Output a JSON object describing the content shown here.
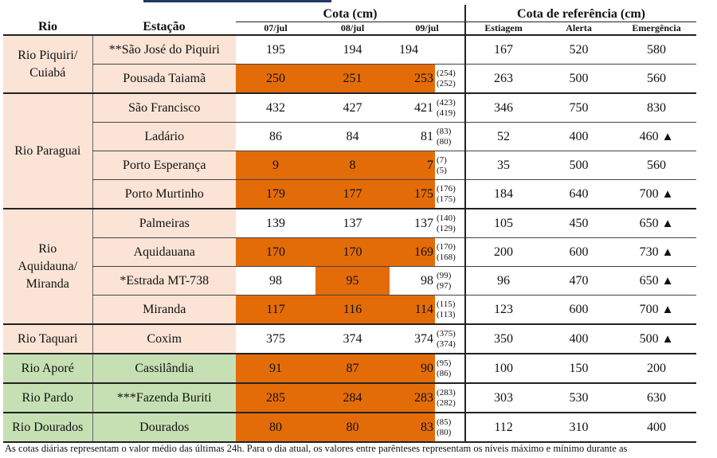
{
  "headers": {
    "rio": "Rio",
    "estacao": "Estação",
    "cota": "Cota (cm)",
    "referencia": "Cota de referência (cm)",
    "dates": [
      "07/jul",
      "08/jul",
      "09/jul"
    ],
    "ref_cols": [
      "Estiagem",
      "Alerta",
      "Emergência"
    ]
  },
  "groups": [
    {
      "rio": "Rio Piquiri/ Cuiabá"
    },
    {
      "rio": "Rio Paraguai"
    },
    {
      "rio": "Rio Aquidauna/ Miranda"
    },
    {
      "rio": "Rio Taquari"
    },
    {
      "rio": "Rio Aporé"
    },
    {
      "rio": "Rio Pardo"
    },
    {
      "rio": "Rio Dourados"
    }
  ],
  "rows": [
    {
      "estacao": "**São José do Piquiri",
      "d1": "195",
      "d2": "194",
      "d3": "194",
      "max": "",
      "min": "",
      "estiagem": "167",
      "alerta": "520",
      "emergencia": "580",
      "tri": ""
    },
    {
      "estacao": "Pousada Taiamã",
      "d1": "250",
      "d2": "251",
      "d3": "253",
      "max": "(254)",
      "min": "(252)",
      "estiagem": "263",
      "alerta": "500",
      "emergencia": "560",
      "tri": ""
    },
    {
      "estacao": "São Francisco",
      "d1": "432",
      "d2": "427",
      "d3": "421",
      "max": "(423)",
      "min": "(419)",
      "estiagem": "346",
      "alerta": "750",
      "emergencia": "830",
      "tri": ""
    },
    {
      "estacao": "Ladário",
      "d1": "86",
      "d2": "84",
      "d3": "81",
      "max": "(83)",
      "min": "(80)",
      "estiagem": "52",
      "alerta": "400",
      "emergencia": "460",
      "tri": "▲"
    },
    {
      "estacao": "Porto Esperança",
      "d1": "9",
      "d2": "8",
      "d3": "7",
      "max": "(7)",
      "min": "(5)",
      "estiagem": "35",
      "alerta": "500",
      "emergencia": "560",
      "tri": ""
    },
    {
      "estacao": "Porto Murtinho",
      "d1": "179",
      "d2": "177",
      "d3": "175",
      "max": "(176)",
      "min": "(175)",
      "estiagem": "184",
      "alerta": "640",
      "emergencia": "700",
      "tri": "▲"
    },
    {
      "estacao": "Palmeiras",
      "d1": "139",
      "d2": "137",
      "d3": "137",
      "max": "(140)",
      "min": "(129)",
      "estiagem": "105",
      "alerta": "450",
      "emergencia": "650",
      "tri": "▲"
    },
    {
      "estacao": "Aquidauana",
      "d1": "170",
      "d2": "170",
      "d3": "169",
      "max": "(170)",
      "min": "(168)",
      "estiagem": "200",
      "alerta": "600",
      "emergencia": "730",
      "tri": "▲"
    },
    {
      "estacao": "*Estrada MT-738",
      "d1": "98",
      "d2": "95",
      "d3": "98",
      "max": "(99)",
      "min": "(97)",
      "estiagem": "96",
      "alerta": "470",
      "emergencia": "650",
      "tri": "▲"
    },
    {
      "estacao": "Miranda",
      "d1": "117",
      "d2": "116",
      "d3": "114",
      "max": "(115)",
      "min": "(113)",
      "estiagem": "123",
      "alerta": "600",
      "emergencia": "700",
      "tri": "▲"
    },
    {
      "estacao": "Coxim",
      "d1": "375",
      "d2": "374",
      "d3": "374",
      "max": "(375)",
      "min": "(374)",
      "estiagem": "350",
      "alerta": "400",
      "emergencia": "500",
      "tri": "▲"
    },
    {
      "estacao": "Cassilândia",
      "d1": "91",
      "d2": "87",
      "d3": "90",
      "max": "(95)",
      "min": "(86)",
      "estiagem": "100",
      "alerta": "150",
      "emergencia": "200",
      "tri": ""
    },
    {
      "estacao": "***Fazenda Buriti",
      "d1": "285",
      "d2": "284",
      "d3": "283",
      "max": "(283)",
      "min": "(282)",
      "estiagem": "303",
      "alerta": "530",
      "emergencia": "630",
      "tri": ""
    },
    {
      "estacao": "Dourados",
      "d1": "80",
      "d2": "80",
      "d3": "83",
      "max": "(85)",
      "min": "(80)",
      "estiagem": "112",
      "alerta": "310",
      "emergencia": "400",
      "tri": ""
    }
  ],
  "colors": {
    "below_estiagem": "#e36c09",
    "group_pink": "#fbe4d6",
    "group_green": "#c6e0b4"
  },
  "footnote": "As cotas diárias representam o valor médio das últimas 24h. Para o dia atual, os valores entre parênteses representam os níveis máximo e mínimo durante as"
}
